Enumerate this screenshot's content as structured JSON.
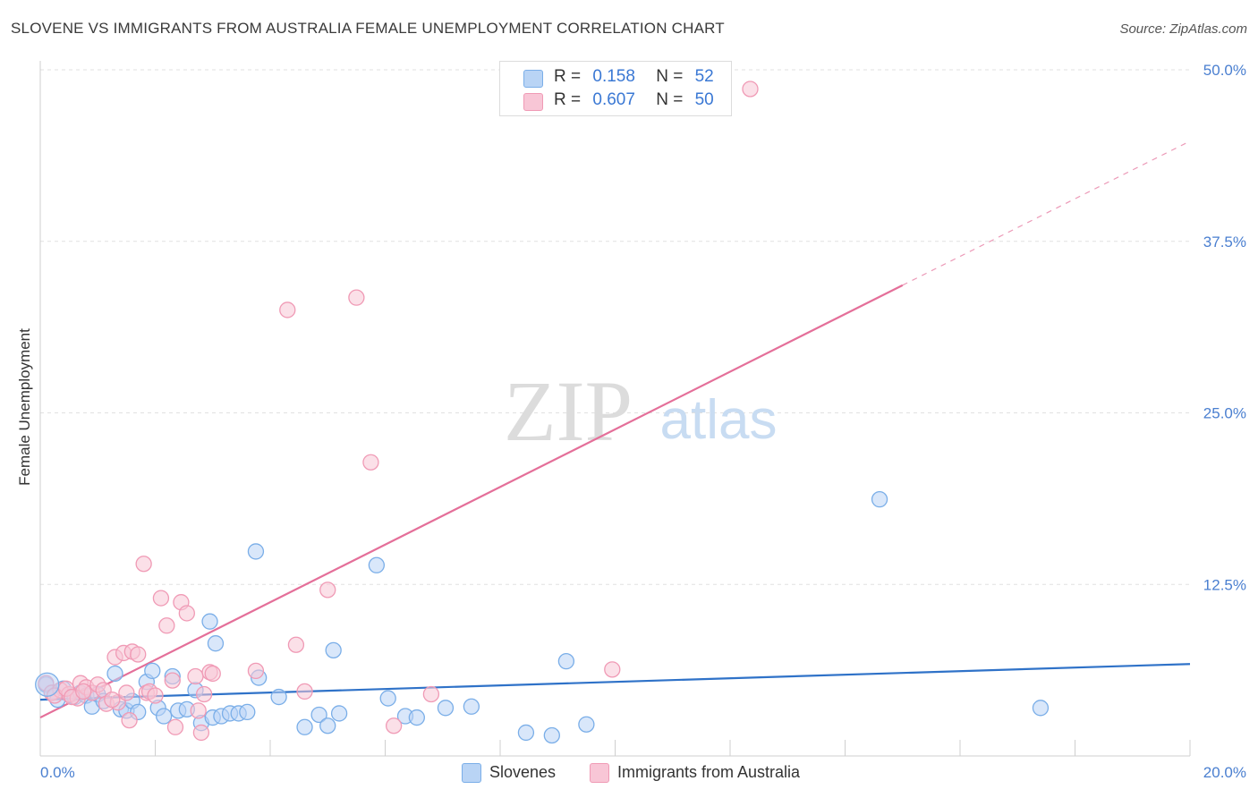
{
  "chart_data": {
    "type": "scatter",
    "title": "SLOVENE VS IMMIGRANTS FROM AUSTRALIA FEMALE UNEMPLOYMENT CORRELATION CHART",
    "source": "Source: ZipAtlas.com",
    "xlabel": "",
    "ylabel": "Female Unemployment",
    "xlim": [
      0,
      20
    ],
    "ylim": [
      0,
      50
    ],
    "x_tick_labels": [
      {
        "value": 0,
        "label": "0.0%"
      },
      {
        "value": 20,
        "label": "20.0%"
      }
    ],
    "y_tick_labels": [
      {
        "value": 12.5,
        "label": "12.5%"
      },
      {
        "value": 25,
        "label": "25.0%"
      },
      {
        "value": 37.5,
        "label": "37.5%"
      },
      {
        "value": 50,
        "label": "50.0%"
      }
    ],
    "watermark": {
      "part1": "ZIP",
      "part2": "atlas"
    },
    "legend_stats": [
      {
        "r_label": "R =",
        "r_value": "0.158",
        "n_label": "N =",
        "n_value": "52"
      },
      {
        "r_label": "R =",
        "r_value": "0.607",
        "n_label": "N =",
        "n_value": "50"
      }
    ],
    "series": [
      {
        "name": "Slovenes",
        "color": "#7aaee8",
        "fill": "#b9d4f5",
        "line_color": "#2f72c8",
        "trend": {
          "x0": 0,
          "y0": 4.1,
          "x1": 20,
          "y1": 6.7,
          "solid_until": 20
        },
        "points": [
          [
            0.1,
            5.2
          ],
          [
            0.2,
            4.6
          ],
          [
            0.3,
            4.1
          ],
          [
            0.4,
            4.9
          ],
          [
            0.5,
            4.5
          ],
          [
            0.6,
            4.3
          ],
          [
            0.7,
            4.6
          ],
          [
            0.8,
            4.4
          ],
          [
            0.9,
            3.6
          ],
          [
            1.0,
            4.5
          ],
          [
            1.1,
            4.0
          ],
          [
            1.3,
            6.0
          ],
          [
            1.4,
            3.4
          ],
          [
            1.5,
            3.3
          ],
          [
            1.6,
            4.0
          ],
          [
            1.7,
            3.2
          ],
          [
            1.85,
            5.4
          ],
          [
            1.95,
            6.2
          ],
          [
            2.05,
            3.5
          ],
          [
            2.15,
            2.9
          ],
          [
            2.3,
            5.8
          ],
          [
            2.4,
            3.3
          ],
          [
            2.55,
            3.4
          ],
          [
            2.7,
            4.8
          ],
          [
            2.8,
            2.4
          ],
          [
            2.95,
            9.8
          ],
          [
            3.0,
            2.8
          ],
          [
            3.05,
            8.2
          ],
          [
            3.15,
            2.9
          ],
          [
            3.3,
            3.1
          ],
          [
            3.45,
            3.1
          ],
          [
            3.6,
            3.2
          ],
          [
            3.75,
            14.9
          ],
          [
            3.8,
            5.7
          ],
          [
            4.15,
            4.3
          ],
          [
            4.6,
            2.1
          ],
          [
            4.85,
            3.0
          ],
          [
            5.0,
            2.2
          ],
          [
            5.1,
            7.7
          ],
          [
            5.2,
            3.1
          ],
          [
            5.85,
            13.9
          ],
          [
            6.05,
            4.2
          ],
          [
            6.35,
            2.9
          ],
          [
            6.55,
            2.8
          ],
          [
            7.05,
            3.5
          ],
          [
            7.5,
            3.6
          ],
          [
            8.45,
            1.7
          ],
          [
            8.9,
            1.5
          ],
          [
            9.15,
            6.9
          ],
          [
            9.5,
            2.3
          ],
          [
            14.6,
            18.7
          ],
          [
            17.4,
            3.5
          ]
        ]
      },
      {
        "name": "Immigrants from Australia",
        "color": "#f09ab5",
        "fill": "#f8c6d6",
        "line_color": "#e46f99",
        "trend": {
          "x0": 0,
          "y0": 2.8,
          "x1": 20,
          "y1": 44.8,
          "solid_until": 15.0
        },
        "points": [
          [
            0.1,
            5.3
          ],
          [
            0.2,
            4.6
          ],
          [
            0.35,
            4.8
          ],
          [
            0.5,
            4.5
          ],
          [
            0.65,
            4.2
          ],
          [
            0.7,
            5.3
          ],
          [
            0.8,
            5.0
          ],
          [
            0.9,
            4.6
          ],
          [
            1.0,
            5.2
          ],
          [
            1.1,
            4.8
          ],
          [
            1.15,
            3.8
          ],
          [
            1.3,
            7.2
          ],
          [
            1.35,
            3.9
          ],
          [
            1.45,
            7.5
          ],
          [
            1.5,
            4.6
          ],
          [
            1.55,
            2.6
          ],
          [
            1.6,
            7.6
          ],
          [
            1.7,
            7.4
          ],
          [
            1.8,
            14.0
          ],
          [
            1.85,
            4.6
          ],
          [
            1.9,
            4.7
          ],
          [
            2.1,
            11.5
          ],
          [
            2.2,
            9.5
          ],
          [
            2.3,
            5.5
          ],
          [
            2.35,
            2.1
          ],
          [
            2.45,
            11.2
          ],
          [
            2.55,
            10.4
          ],
          [
            2.7,
            5.8
          ],
          [
            2.75,
            3.3
          ],
          [
            2.8,
            1.7
          ],
          [
            2.85,
            4.5
          ],
          [
            2.95,
            6.1
          ],
          [
            3.0,
            6.0
          ],
          [
            3.75,
            6.2
          ],
          [
            4.3,
            32.5
          ],
          [
            4.45,
            8.1
          ],
          [
            4.6,
            4.7
          ],
          [
            5.0,
            12.1
          ],
          [
            5.5,
            33.4
          ],
          [
            5.75,
            21.4
          ],
          [
            6.15,
            2.2
          ],
          [
            6.8,
            4.5
          ],
          [
            9.95,
            6.3
          ],
          [
            12.35,
            48.6
          ],
          [
            0.25,
            4.4
          ],
          [
            0.45,
            4.9
          ],
          [
            0.55,
            4.3
          ],
          [
            0.75,
            4.7
          ],
          [
            1.25,
            4.1
          ],
          [
            2.0,
            4.4
          ]
        ]
      }
    ]
  }
}
